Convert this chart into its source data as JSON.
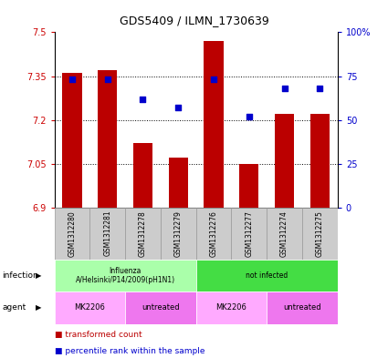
{
  "title": "GDS5409 / ILMN_1730639",
  "samples": [
    "GSM1312280",
    "GSM1312281",
    "GSM1312278",
    "GSM1312279",
    "GSM1312276",
    "GSM1312277",
    "GSM1312274",
    "GSM1312275"
  ],
  "bar_values": [
    7.36,
    7.37,
    7.12,
    7.07,
    7.47,
    7.05,
    7.22,
    7.22
  ],
  "dot_values": [
    73,
    73,
    62,
    57,
    73,
    52,
    68,
    68
  ],
  "ymin": 6.9,
  "ymax": 7.5,
  "yticks": [
    6.9,
    7.05,
    7.2,
    7.35,
    7.5
  ],
  "ytick_labels": [
    "6.9",
    "7.05",
    "7.2",
    "7.35",
    "7.5"
  ],
  "y2min": 0,
  "y2max": 100,
  "y2ticks": [
    0,
    25,
    50,
    75,
    100
  ],
  "y2tick_labels": [
    "0",
    "25",
    "50",
    "75",
    "100%"
  ],
  "bar_color": "#BB0000",
  "dot_color": "#0000CC",
  "infection_label_color": "#006600",
  "infection_groups": [
    {
      "label": "Influenza\nA/Helsinki/P14/2009(pH1N1)",
      "span": [
        0,
        4
      ],
      "color": "#AAFFAA"
    },
    {
      "label": "not infected",
      "span": [
        4,
        8
      ],
      "color": "#44DD44"
    }
  ],
  "agent_groups": [
    {
      "label": "MK2206",
      "span": [
        0,
        2
      ],
      "color": "#FFAAFF"
    },
    {
      "label": "untreated",
      "span": [
        2,
        4
      ],
      "color": "#EE77EE"
    },
    {
      "label": "MK2206",
      "span": [
        4,
        6
      ],
      "color": "#FFAAFF"
    },
    {
      "label": "untreated",
      "span": [
        6,
        8
      ],
      "color": "#EE77EE"
    }
  ],
  "legend_items": [
    {
      "label": "transformed count",
      "color": "#BB0000"
    },
    {
      "label": "percentile rank within the sample",
      "color": "#0000CC"
    }
  ],
  "fig_width": 4.25,
  "fig_height": 3.93,
  "dpi": 100
}
